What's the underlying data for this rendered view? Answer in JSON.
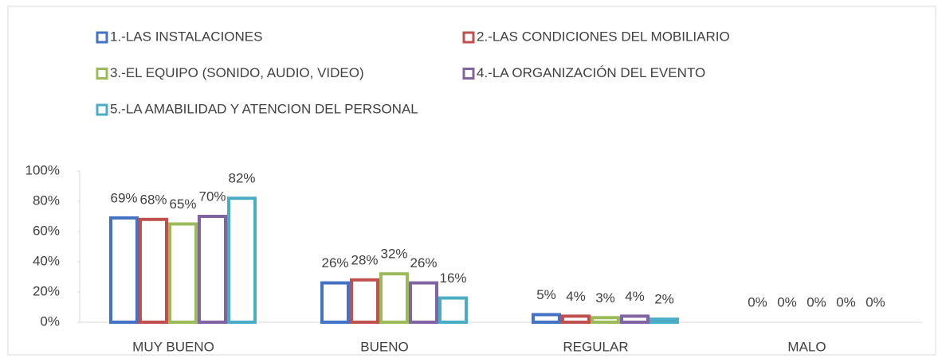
{
  "chart_data": {
    "type": "bar",
    "categories": [
      "MUY BUENO",
      "BUENO",
      "REGULAR",
      "MALO"
    ],
    "series": [
      {
        "name": "1.-LAS INSTALACIONES",
        "color": "#4472c4",
        "values": [
          69,
          26,
          5,
          0
        ],
        "value_labels": [
          "69%",
          "26%",
          "5%",
          "0%"
        ]
      },
      {
        "name": "2.-LAS CONDICIONES DEL MOBILIARIO",
        "color": "#c0504d",
        "values": [
          68,
          28,
          4,
          0
        ],
        "value_labels": [
          "68%",
          "28%",
          "4%",
          "0%"
        ]
      },
      {
        "name": "3.-EL EQUIPO (SONIDO, AUDIO, VIDEO)",
        "color": "#9bbb59",
        "values": [
          65,
          32,
          3,
          0
        ],
        "value_labels": [
          "65%",
          "32%",
          "3%",
          "0%"
        ]
      },
      {
        "name": "4.-LA ORGANIZACIÓN DEL EVENTO",
        "color": "#8064a2",
        "values": [
          70,
          26,
          4,
          0
        ],
        "value_labels": [
          "70%",
          "26%",
          "4%",
          "0%"
        ]
      },
      {
        "name": "5.-LA AMABILIDAD Y ATENCION DEL PERSONAL",
        "color": "#4bacc6",
        "values": [
          82,
          16,
          2,
          0
        ],
        "value_labels": [
          "82%",
          "16%",
          "2%",
          "0%"
        ]
      }
    ],
    "ylim": [
      0,
      100
    ],
    "yticks": [
      {
        "value": 0,
        "label": "0%"
      },
      {
        "value": 20,
        "label": "20%"
      },
      {
        "value": 40,
        "label": "40%"
      },
      {
        "value": 60,
        "label": "60%"
      },
      {
        "value": 80,
        "label": "80%"
      },
      {
        "value": 100,
        "label": "100%"
      }
    ],
    "grid": false,
    "legend": "top"
  }
}
